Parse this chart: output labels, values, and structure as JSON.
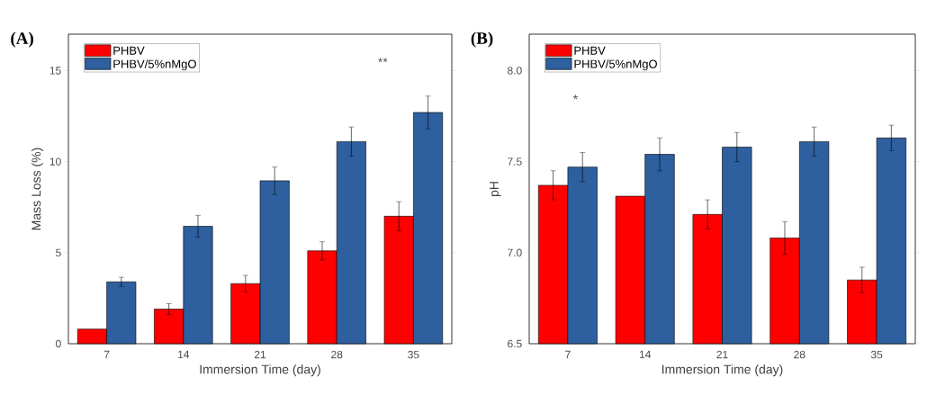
{
  "chart_data": [
    {
      "type": "bar",
      "title": "(A)",
      "xlabel": "Immersion Time (day)",
      "ylabel": "Mass Loss (%)",
      "categories": [
        "7",
        "14",
        "21",
        "28",
        "35"
      ],
      "series": [
        {
          "name": "PHBV",
          "color": "#ff0000",
          "values": [
            0.8,
            1.9,
            3.3,
            5.1,
            7.0
          ],
          "errors": [
            null,
            0.3,
            0.45,
            0.5,
            0.8
          ]
        },
        {
          "name": "PHBV/5%nMgO",
          "color": "#2e5f9e",
          "values": [
            3.4,
            6.45,
            8.95,
            11.1,
            12.7
          ],
          "errors": [
            0.25,
            0.6,
            0.75,
            0.8,
            0.9
          ]
        }
      ],
      "ylim": [
        0,
        17
      ],
      "yticks": [
        0,
        5,
        10,
        15
      ],
      "legend": "top left",
      "annotations": [
        "**"
      ]
    },
    {
      "type": "bar",
      "title": "(B)",
      "xlabel": "Immersion Time (day)",
      "ylabel": "pH",
      "categories": [
        "7",
        "14",
        "21",
        "28",
        "35"
      ],
      "series": [
        {
          "name": "PHBV",
          "color": "#ff0000",
          "values": [
            7.37,
            7.31,
            7.21,
            7.08,
            6.85
          ],
          "errors": [
            0.08,
            null,
            0.08,
            0.09,
            0.07
          ]
        },
        {
          "name": "PHBV/5%nMgO",
          "color": "#2e5f9e",
          "values": [
            7.47,
            7.54,
            7.58,
            7.61,
            7.63
          ],
          "errors": [
            0.08,
            0.09,
            0.08,
            0.08,
            0.07
          ]
        }
      ],
      "ylim": [
        6.5,
        8.2
      ],
      "yticks": [
        {
          "value": 6.5,
          "label": "6.5"
        },
        {
          "value": 7.0,
          "label": "7.0"
        },
        {
          "value": 7.5,
          "label": "7.5"
        },
        {
          "value": 8.0,
          "label": "8.0"
        }
      ],
      "legend": "top left",
      "annotations": [
        "*"
      ]
    }
  ]
}
